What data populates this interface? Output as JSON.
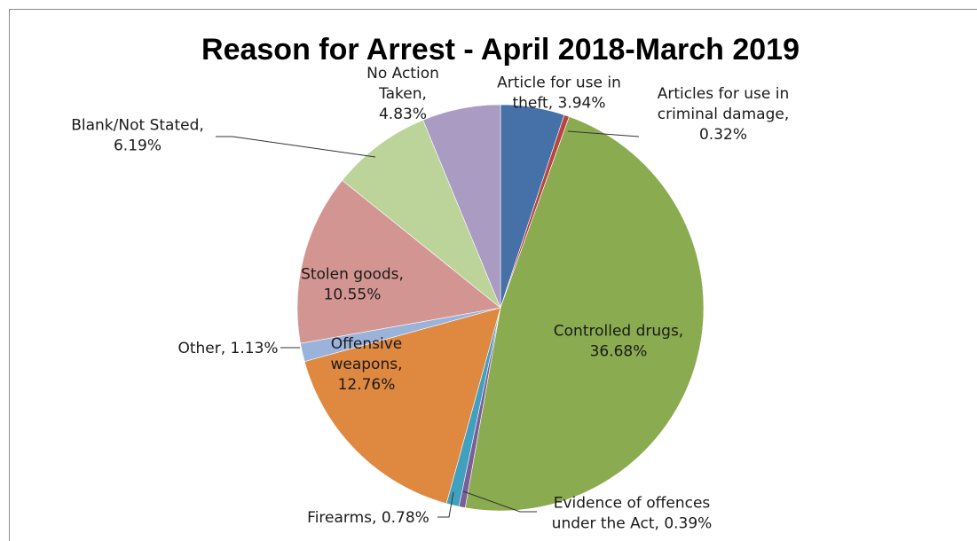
{
  "chart_data": {
    "type": "pie",
    "title": "Reason for Arrest - April 2018-March 2019",
    "slices": [
      {
        "name": "Article for use in theft",
        "value": 3.94,
        "label": [
          "Article for use in",
          "theft, 3.94%"
        ],
        "color": "#4570a8"
      },
      {
        "name": "Articles for use in criminal damage",
        "value": 0.32,
        "label": [
          "Articles for use in",
          "criminal damage,",
          "0.32%"
        ],
        "color": "#b9433f"
      },
      {
        "name": "Controlled drugs",
        "value": 36.68,
        "label": [
          "Controlled drugs,",
          "36.68%"
        ],
        "color": "#8aab50"
      },
      {
        "name": "Evidence of offences under the Act",
        "value": 0.39,
        "label": [
          "Evidence of offences",
          "under the Act, 0.39%"
        ],
        "color": "#7a5d99"
      },
      {
        "name": "Firearms",
        "value": 0.78,
        "label": [
          "Firearms, 0.78%"
        ],
        "color": "#40a0bd"
      },
      {
        "name": "Offensive weapons",
        "value": 12.76,
        "label": [
          "Offensive",
          "weapons,",
          "12.76%"
        ],
        "color": "#df8840"
      },
      {
        "name": "Other",
        "value": 1.13,
        "label": [
          "Other, 1.13%"
        ],
        "color": "#9bb3db"
      },
      {
        "name": "Stolen goods",
        "value": 10.55,
        "label": [
          "Stolen goods,",
          "10.55%"
        ],
        "color": "#d39592"
      },
      {
        "name": "Blank/Not Stated",
        "value": 6.19,
        "label": [
          "Blank/Not Stated,",
          "6.19%"
        ],
        "color": "#bcd39a"
      },
      {
        "name": "No Action Taken",
        "value": 4.83,
        "label": [
          "No Action",
          "Taken,",
          "4.83%"
        ],
        "color": "#a99bc1"
      }
    ]
  }
}
